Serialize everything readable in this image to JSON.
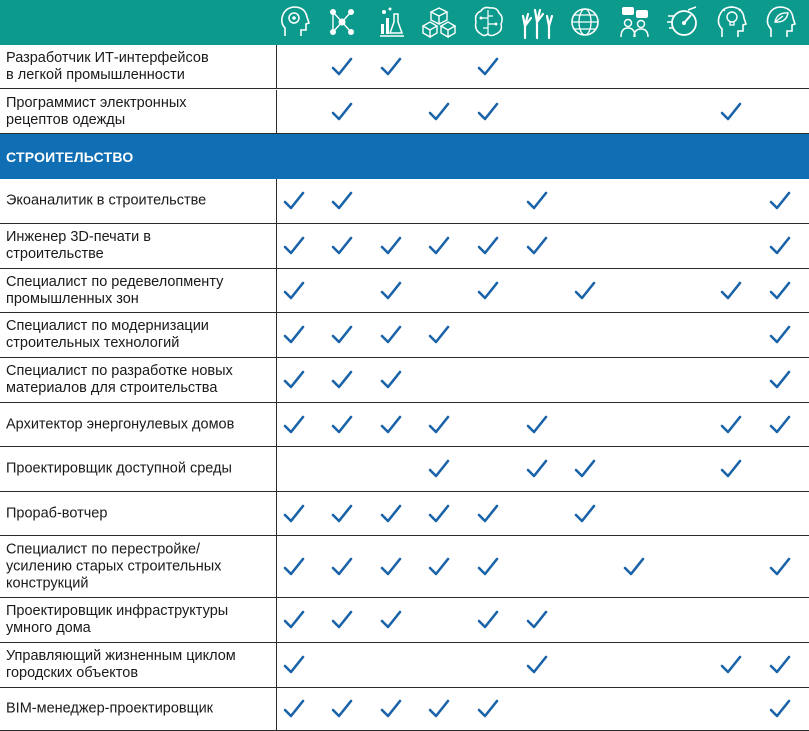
{
  "colors": {
    "header_bg": "#0c9a8d",
    "section_bg": "#0f6eb4",
    "check": "#1a63a8"
  },
  "icons": [
    "head-gears-icon",
    "network-nodes-icon",
    "flasks-chart-icon",
    "cubes-icon",
    "brain-circuit-icon",
    "raised-hands-icon",
    "globe-icon",
    "people-chat-icon",
    "gauge-speed-icon",
    "head-lightbulb-icon",
    "head-leaf-icon"
  ],
  "top_rows": [
    {
      "label": "Разработчик ИТ-интерфейсов\nв легкой промышленности",
      "checks": [
        false,
        true,
        true,
        false,
        true,
        false,
        false,
        false,
        false,
        false,
        false
      ]
    },
    {
      "label": "Программист электронных\nрецептов одежды",
      "checks": [
        false,
        true,
        false,
        true,
        true,
        false,
        false,
        false,
        false,
        true,
        false
      ]
    }
  ],
  "section": {
    "title": "СТРОИТЕЛЬСТВО"
  },
  "rows": [
    {
      "label": "Экоаналитик в строительстве",
      "checks": [
        true,
        true,
        false,
        false,
        false,
        true,
        false,
        false,
        false,
        false,
        true
      ]
    },
    {
      "label": "Инженер 3D-печати в\nстроительстве",
      "checks": [
        true,
        true,
        true,
        true,
        true,
        true,
        false,
        false,
        false,
        false,
        true
      ]
    },
    {
      "label": "Специалист по редевелопменту\nпромышленных зон",
      "checks": [
        true,
        false,
        true,
        false,
        true,
        false,
        true,
        false,
        false,
        true,
        true
      ]
    },
    {
      "label": "Специалист по модернизации\nстроительных технологий",
      "checks": [
        true,
        true,
        true,
        true,
        false,
        false,
        false,
        false,
        false,
        false,
        true
      ]
    },
    {
      "label": "Специалист по разработке новых\nматериалов для строительства",
      "checks": [
        true,
        true,
        true,
        false,
        false,
        false,
        false,
        false,
        false,
        false,
        true
      ]
    },
    {
      "label": "Архитектор энергонулевых домов",
      "checks": [
        true,
        true,
        true,
        true,
        false,
        true,
        false,
        false,
        false,
        true,
        true
      ]
    },
    {
      "label": "Проектировщик доступной среды",
      "checks": [
        false,
        false,
        false,
        true,
        false,
        true,
        true,
        false,
        false,
        true,
        false
      ]
    },
    {
      "label": "Прораб-вотчер",
      "checks": [
        true,
        true,
        true,
        true,
        true,
        false,
        true,
        false,
        false,
        false,
        false
      ]
    },
    {
      "label": "Специалист по перестройке/\nусилению старых строительных\nконструкций",
      "checks": [
        true,
        true,
        true,
        true,
        true,
        false,
        false,
        true,
        false,
        false,
        true
      ]
    },
    {
      "label": "Проектировщик инфраструктуры\nумного дома",
      "checks": [
        true,
        true,
        true,
        false,
        true,
        true,
        false,
        false,
        false,
        false,
        false
      ]
    },
    {
      "label": "Управляющий жизненным циклом\nгородских объектов",
      "checks": [
        true,
        false,
        false,
        false,
        false,
        true,
        false,
        false,
        false,
        true,
        true
      ]
    },
    {
      "label": "BIM-менеджер-проектировщик",
      "checks": [
        true,
        true,
        true,
        true,
        true,
        false,
        false,
        false,
        false,
        false,
        true
      ]
    }
  ]
}
